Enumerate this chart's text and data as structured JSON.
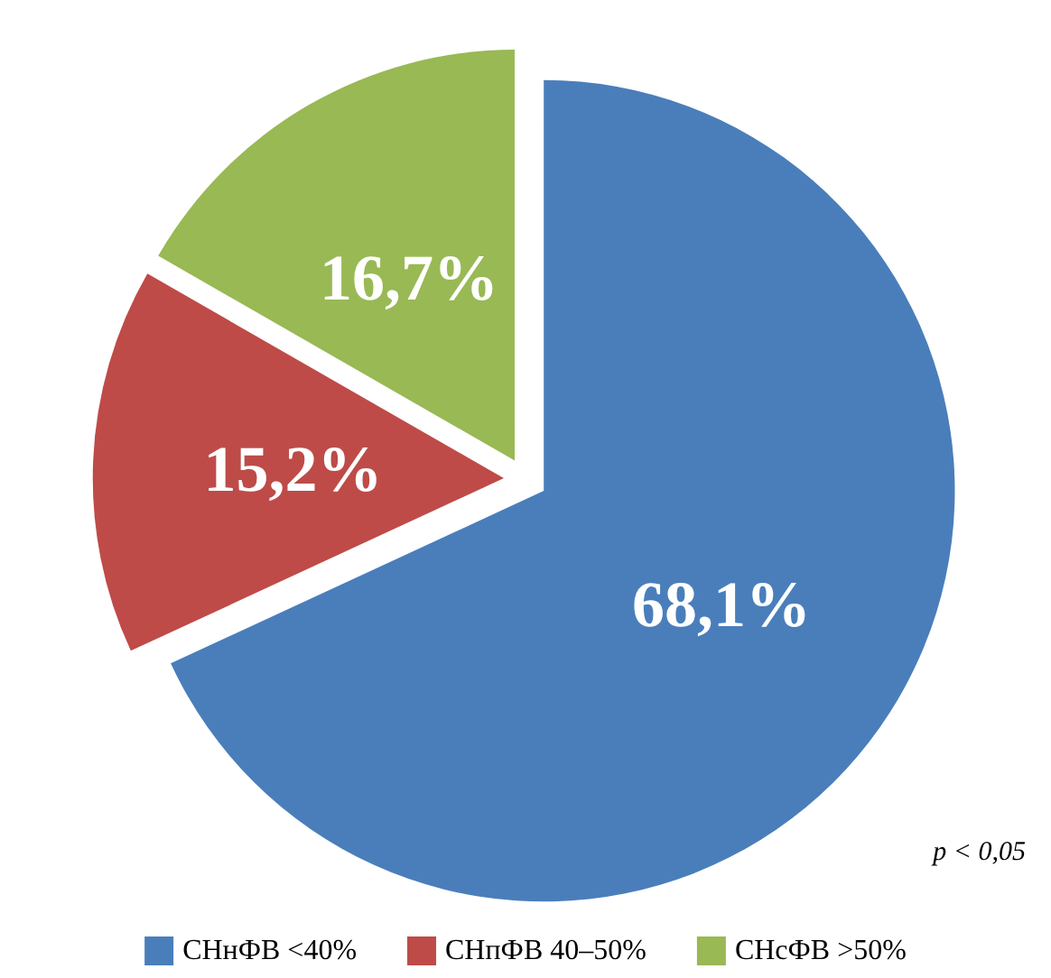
{
  "chart_data": {
    "type": "pie",
    "categories": [
      "СНнФВ <40%",
      "СНпФВ 40–50%",
      "СНсФВ >50%"
    ],
    "values": [
      68.1,
      15.2,
      16.7
    ],
    "colors": [
      "#4a7ebb",
      "#be4b48",
      "#98b954"
    ],
    "value_labels": [
      "68,1%",
      "15,2%",
      "16,7%"
    ],
    "legend": "bottom",
    "annotations": [
      "p < 0,05"
    ]
  }
}
